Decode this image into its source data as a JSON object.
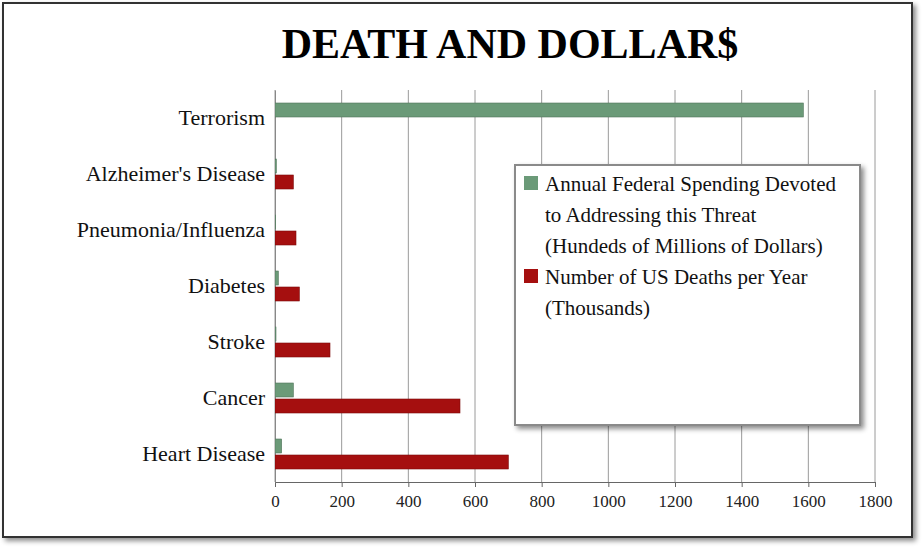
{
  "chart_data": {
    "type": "bar",
    "title": "DEATH AND DOLLAR$",
    "orientation": "horizontal",
    "categories": [
      "Terrorism",
      "Alzheimer's Disease",
      "Pneumonia/Influenza",
      "Diabetes",
      "Stroke",
      "Cancer",
      "Heart Disease"
    ],
    "series": [
      {
        "name": "Annual Federal Spending Devoted to Addressing this Threat (Hundeds of Millions of Dollars)",
        "color": "#6b9a78",
        "values": [
          1585,
          4,
          2,
          10,
          3,
          55,
          20
        ]
      },
      {
        "name": "Number of US Deaths per Year (Thousands)",
        "color": "#a50f0f",
        "values": [
          0,
          55,
          63,
          73,
          165,
          555,
          700
        ]
      }
    ],
    "xlim": [
      0,
      1800
    ],
    "xticks": [
      0,
      200,
      400,
      600,
      800,
      1000,
      1200,
      1400,
      1600,
      1800
    ],
    "grid": true,
    "legend": "right"
  }
}
